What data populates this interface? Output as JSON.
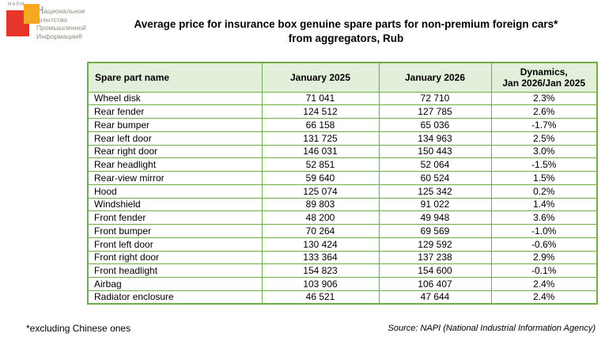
{
  "logo": {
    "acronym": "НАПИ",
    "lines": [
      "Национальное",
      "Агентство",
      "Промышленной",
      "Информации®"
    ],
    "colors": {
      "red": "#E6352B",
      "orange": "#F7A823",
      "text": "#8E8C7E"
    }
  },
  "title": {
    "line1": "Average price for insurance box genuine spare parts for non-premium foreign cars*",
    "line2": "from aggregators, Rub"
  },
  "table": {
    "border_color": "#70AD47",
    "header_bg": "#E2EFDA",
    "header": {
      "col1": "Spare part name",
      "col2": "January 2025",
      "col3": "January 2026",
      "col4_line1": "Dynamics,",
      "col4_line2": "Jan 2026/Jan 2025"
    },
    "rows": [
      [
        "Wheel disk",
        "71 041",
        "72 710",
        "2.3%"
      ],
      [
        "Rear fender",
        "124 512",
        "127 785",
        "2.6%"
      ],
      [
        "Rear bumper",
        "66 158",
        "65 036",
        "-1.7%"
      ],
      [
        "Rear left door",
        "131 725",
        "134 963",
        "2.5%"
      ],
      [
        "Rear right door",
        "146 031",
        "150 443",
        "3.0%"
      ],
      [
        "Rear headlight",
        "52 851",
        "52 064",
        "-1.5%"
      ],
      [
        "Rear-view mirror",
        "59 640",
        "60 524",
        "1.5%"
      ],
      [
        "Hood",
        "125 074",
        "125 342",
        "0.2%"
      ],
      [
        "Windshield",
        "89 803",
        "91 022",
        "1.4%"
      ],
      [
        "Front fender",
        "48 200",
        "49 948",
        "3.6%"
      ],
      [
        "Front bumper",
        "70 264",
        "69 569",
        "-1.0%"
      ],
      [
        "Front left door",
        "130 424",
        "129 592",
        "-0.6%"
      ],
      [
        "Front right door",
        "133 364",
        "137 238",
        "2.9%"
      ],
      [
        "Front headlight",
        "154 823",
        "154 600",
        "-0.1%"
      ],
      [
        "Airbag",
        "103 906",
        "106 407",
        "2.4%"
      ],
      [
        "Radiator enclosure",
        "46 521",
        "47 644",
        "2.4%"
      ]
    ]
  },
  "footnote": "*excluding Chinese ones",
  "source": "Source: NAPI (National Industrial Information Agency)",
  "chart_data": {
    "type": "table",
    "title": "Average price for insurance box genuine spare parts for non-premium foreign cars* from aggregators, Rub",
    "columns": [
      "Spare part name",
      "January 2025",
      "January 2026",
      "Dynamics, Jan 2026/Jan 2025"
    ],
    "categories": [
      "Wheel disk",
      "Rear fender",
      "Rear bumper",
      "Rear left door",
      "Rear right door",
      "Rear headlight",
      "Rear-view mirror",
      "Hood",
      "Windshield",
      "Front fender",
      "Front bumper",
      "Front left door",
      "Front right door",
      "Front headlight",
      "Airbag",
      "Radiator enclosure"
    ],
    "series": [
      {
        "name": "January 2025",
        "values": [
          71041,
          124512,
          66158,
          131725,
          146031,
          52851,
          59640,
          125074,
          89803,
          48200,
          70264,
          130424,
          133364,
          154823,
          103906,
          46521
        ]
      },
      {
        "name": "January 2026",
        "values": [
          72710,
          127785,
          65036,
          134963,
          150443,
          52064,
          60524,
          125342,
          91022,
          49948,
          69569,
          129592,
          137238,
          154600,
          106407,
          47644
        ]
      },
      {
        "name": "Dynamics Jan 2026/Jan 2025 (%)",
        "values": [
          2.3,
          2.6,
          -1.7,
          2.5,
          3.0,
          -1.5,
          1.5,
          0.2,
          1.4,
          3.6,
          -1.0,
          -0.6,
          2.9,
          -0.1,
          2.4,
          2.4
        ]
      }
    ],
    "footnote": "*excluding Chinese ones",
    "source": "Source: NAPI (National Industrial Information Agency)"
  }
}
